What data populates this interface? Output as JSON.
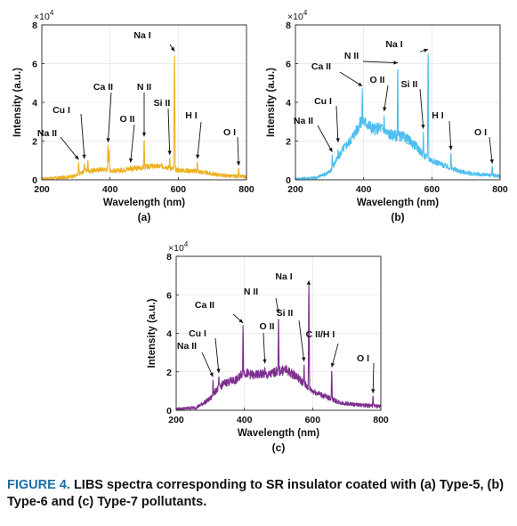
{
  "figure": {
    "caption_label": "FIGURE 4.",
    "caption_text": "LIBS spectra corresponding to SR insulator coated with (a) Type-5, (b) Type-6 and (c) Type-7 pollutants."
  },
  "chart_data": [
    {
      "type": "line",
      "panel": "(a)",
      "color": "#EDB120",
      "xlabel": "Wavelength (nm)",
      "ylabel": "Intensity (a.u.)",
      "yexp": "×10",
      "yexp_power": "4",
      "xlim": [
        200,
        800
      ],
      "ylim": [
        0,
        8
      ],
      "xticks": [
        200,
        400,
        600,
        800
      ],
      "yticks": [
        0,
        2,
        4,
        6,
        8
      ],
      "grid": true,
      "baseline": [
        [
          200,
          0.05
        ],
        [
          250,
          0.1
        ],
        [
          300,
          0.2
        ],
        [
          330,
          0.5
        ],
        [
          340,
          0.45
        ],
        [
          360,
          0.5
        ],
        [
          380,
          0.55
        ],
        [
          420,
          0.45
        ],
        [
          450,
          0.55
        ],
        [
          480,
          0.6
        ],
        [
          520,
          0.7
        ],
        [
          560,
          0.7
        ],
        [
          600,
          0.5
        ],
        [
          650,
          0.45
        ],
        [
          700,
          0.3
        ],
        [
          750,
          0.2
        ],
        [
          800,
          0.15
        ]
      ],
      "peaks": [
        [
          308,
          0.9
        ],
        [
          325,
          0.85
        ],
        [
          335,
          1.0
        ],
        [
          394,
          1.8
        ],
        [
          397,
          1.6
        ],
        [
          460,
          0.75
        ],
        [
          500,
          2.1
        ],
        [
          520,
          0.7
        ],
        [
          575,
          1.15
        ],
        [
          589,
          6.5
        ],
        [
          656,
          0.95
        ],
        [
          777,
          0.6
        ]
      ],
      "peak_labels": [
        {
          "text": "Na II",
          "x": 308,
          "y": 0.9
        },
        {
          "text": "Cu I",
          "x": 325,
          "y": 0.95
        },
        {
          "text": "Ca II",
          "x": 394,
          "y": 1.8
        },
        {
          "text": "O II",
          "x": 460,
          "y": 0.75
        },
        {
          "text": "N II",
          "x": 500,
          "y": 2.1
        },
        {
          "text": "Si II",
          "x": 575,
          "y": 1.15
        },
        {
          "text": "Na I",
          "x": 589,
          "y": 6.5
        },
        {
          "text": "H I",
          "x": 656,
          "y": 0.95
        },
        {
          "text": "O I",
          "x": 777,
          "y": 0.6
        }
      ]
    },
    {
      "type": "line",
      "panel": "(b)",
      "color": "#4DBEEE",
      "xlabel": "Wavelength (nm)",
      "ylabel": "Intensity (a.u.)",
      "yexp": "×10",
      "yexp_power": "4",
      "xlim": [
        200,
        800
      ],
      "ylim": [
        0,
        8
      ],
      "xticks": [
        200,
        400,
        600,
        800
      ],
      "yticks": [
        0,
        2,
        4,
        6,
        8
      ],
      "grid": true,
      "baseline": [
        [
          200,
          0.05
        ],
        [
          260,
          0.1
        ],
        [
          300,
          0.4
        ],
        [
          320,
          1.0
        ],
        [
          340,
          1.6
        ],
        [
          360,
          2.0
        ],
        [
          380,
          2.6
        ],
        [
          395,
          3.1
        ],
        [
          410,
          2.9
        ],
        [
          430,
          2.6
        ],
        [
          450,
          2.7
        ],
        [
          470,
          2.4
        ],
        [
          490,
          2.3
        ],
        [
          520,
          2.2
        ],
        [
          550,
          1.8
        ],
        [
          580,
          1.2
        ],
        [
          600,
          1.0
        ],
        [
          640,
          0.7
        ],
        [
          680,
          0.45
        ],
        [
          720,
          0.3
        ],
        [
          760,
          0.25
        ],
        [
          800,
          0.2
        ]
      ],
      "peaks": [
        [
          308,
          1.3
        ],
        [
          325,
          1.6
        ],
        [
          396,
          4.7
        ],
        [
          460,
          3.4
        ],
        [
          500,
          5.9
        ],
        [
          575,
          2.5
        ],
        [
          589,
          6.6
        ],
        [
          656,
          1.4
        ],
        [
          777,
          0.7
        ]
      ],
      "peak_labels": [
        {
          "text": "Na II",
          "x": 308,
          "y": 1.3
        },
        {
          "text": "Cu I",
          "x": 325,
          "y": 1.8
        },
        {
          "text": "Ca II",
          "x": 396,
          "y": 4.7
        },
        {
          "text": "N II",
          "x": 500,
          "y": 5.9
        },
        {
          "text": "O II",
          "x": 460,
          "y": 3.4
        },
        {
          "text": "Si II",
          "x": 575,
          "y": 2.5
        },
        {
          "text": "Na I",
          "x": 589,
          "y": 6.6
        },
        {
          "text": "H I",
          "x": 656,
          "y": 1.4
        },
        {
          "text": "O I",
          "x": 777,
          "y": 0.7
        }
      ]
    },
    {
      "type": "line",
      "panel": "(c)",
      "color": "#7E2F8E",
      "xlabel": "Wavelength (nm)",
      "ylabel": "Intensity (a.u.)",
      "yexp": "×10",
      "yexp_power": "4",
      "xlim": [
        200,
        800
      ],
      "ylim": [
        0,
        8
      ],
      "xticks": [
        200,
        400,
        600,
        800
      ],
      "yticks": [
        0,
        2,
        4,
        6,
        8
      ],
      "grid": true,
      "baseline": [
        [
          200,
          0.05
        ],
        [
          260,
          0.15
        ],
        [
          300,
          0.6
        ],
        [
          320,
          1.1
        ],
        [
          340,
          1.4
        ],
        [
          360,
          1.5
        ],
        [
          380,
          1.6
        ],
        [
          395,
          2.0
        ],
        [
          410,
          1.9
        ],
        [
          430,
          1.8
        ],
        [
          450,
          1.9
        ],
        [
          470,
          1.8
        ],
        [
          490,
          2.0
        ],
        [
          520,
          2.1
        ],
        [
          550,
          1.8
        ],
        [
          580,
          1.3
        ],
        [
          600,
          1.0
        ],
        [
          640,
          0.7
        ],
        [
          680,
          0.4
        ],
        [
          720,
          0.3
        ],
        [
          760,
          0.25
        ],
        [
          800,
          0.2
        ]
      ],
      "peaks": [
        [
          308,
          1.6
        ],
        [
          325,
          1.8
        ],
        [
          396,
          4.4
        ],
        [
          460,
          2.3
        ],
        [
          500,
          4.9
        ],
        [
          575,
          2.4
        ],
        [
          589,
          6.6
        ],
        [
          656,
          2.1
        ],
        [
          777,
          0.75
        ]
      ],
      "peak_labels": [
        {
          "text": "Na II",
          "x": 308,
          "y": 1.6
        },
        {
          "text": "Cu I",
          "x": 325,
          "y": 1.8
        },
        {
          "text": "Ca II",
          "x": 396,
          "y": 4.4
        },
        {
          "text": "O II",
          "x": 460,
          "y": 2.3
        },
        {
          "text": "N II",
          "x": 500,
          "y": 4.9
        },
        {
          "text": "Si II",
          "x": 575,
          "y": 2.4
        },
        {
          "text": "Na I",
          "x": 589,
          "y": 6.6
        },
        {
          "text": "C II/H I",
          "x": 656,
          "y": 2.1
        },
        {
          "text": "O I",
          "x": 777,
          "y": 0.75
        }
      ]
    }
  ]
}
